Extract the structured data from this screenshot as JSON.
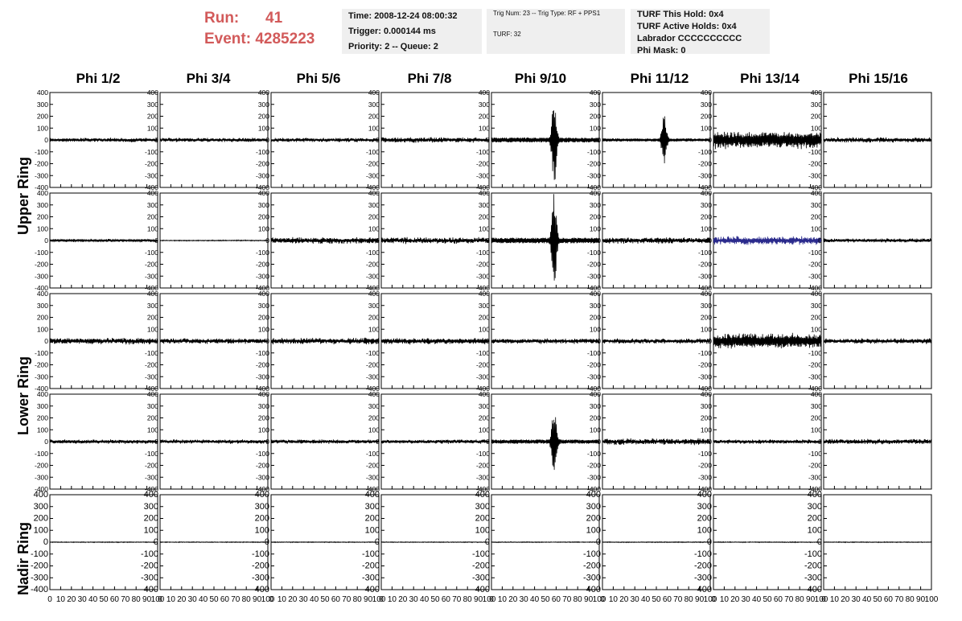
{
  "header": {
    "run_label": "Run:",
    "run_value": "41",
    "event_label": "Event:",
    "event_value": "4285223"
  },
  "info_box_1": {
    "time": "Time: 2008-12-24 08:00:32",
    "trigger": "Trigger: 0.000144 ms",
    "priority": "Priority: 2 -- Queue: 2"
  },
  "info_box_2": {
    "trig": "Trig Num: 23 -- Trig Type: RF + PPS1",
    "turf": "TURF: 32"
  },
  "info_box_3": {
    "hold": "TURF This Hold: 0x4",
    "active": "TURF Active Holds: 0x4",
    "labrador": "Labrador CCCCCCCCCC",
    "phimask": "Phi Mask: 0"
  },
  "columns": [
    "Phi 1/2",
    "Phi 3/4",
    "Phi 5/6",
    "Phi 7/8",
    "Phi 9/10",
    "Phi 11/12",
    "Phi 13/14",
    "Phi 15/16"
  ],
  "ring_labels": [
    "Upper Ring",
    "Lower Ring",
    "Nadir Ring"
  ],
  "y_ticks": [
    "400",
    "300",
    "200",
    "100",
    "0",
    "-100",
    "-200",
    "-300",
    "-400"
  ],
  "x_ticks": [
    "0",
    "10",
    "20",
    "30",
    "40",
    "50",
    "60",
    "70",
    "80",
    "90",
    "100"
  ],
  "colors": {
    "trace": "#000000",
    "highlight": "#2a2a8c",
    "title_red": "#d25a5a",
    "box_bg": "#efefef"
  },
  "chart_data": {
    "type": "line",
    "xlim": [
      0,
      100
    ],
    "ylim": [
      -400,
      400
    ],
    "rows": 5,
    "cols": 8,
    "panel_amplitudes": [
      [
        20,
        20,
        20,
        25,
        350,
        220,
        80,
        25
      ],
      [
        15,
        5,
        30,
        30,
        400,
        30,
        40,
        20
      ],
      [
        30,
        25,
        30,
        30,
        25,
        25,
        70,
        25
      ],
      [
        20,
        20,
        20,
        20,
        300,
        30,
        20,
        25
      ],
      [
        4,
        4,
        4,
        4,
        4,
        4,
        4,
        4
      ]
    ]
  }
}
